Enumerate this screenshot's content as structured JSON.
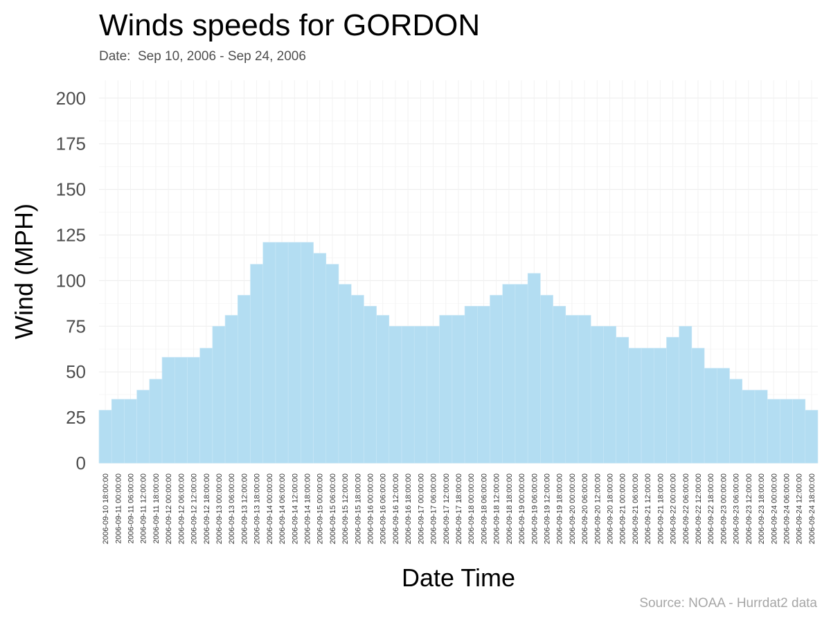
{
  "chart_data": {
    "type": "bar",
    "title": "Winds speeds for GORDON",
    "subtitle": "Date:  Sep 10, 2006 - Sep 24, 2006",
    "caption": "Source: NOAA - Hurrdat2 data",
    "xlabel": "Date Time",
    "ylabel": "Wind (MPH)",
    "ylim": [
      0,
      210
    ],
    "yticks": [
      0,
      25,
      50,
      75,
      100,
      125,
      150,
      175,
      200
    ],
    "grid": true,
    "bar_color": "#b3ddf2",
    "categories": [
      "2006-09-10 18:00:00",
      "2006-09-11 00:00:00",
      "2006-09-11 06:00:00",
      "2006-09-11 12:00:00",
      "2006-09-11 18:00:00",
      "2006-09-12 00:00:00",
      "2006-09-12 06:00:00",
      "2006-09-12 12:00:00",
      "2006-09-12 18:00:00",
      "2006-09-13 00:00:00",
      "2006-09-13 06:00:00",
      "2006-09-13 12:00:00",
      "2006-09-13 18:00:00",
      "2006-09-14 00:00:00",
      "2006-09-14 06:00:00",
      "2006-09-14 12:00:00",
      "2006-09-14 18:00:00",
      "2006-09-15 00:00:00",
      "2006-09-15 06:00:00",
      "2006-09-15 12:00:00",
      "2006-09-15 18:00:00",
      "2006-09-16 00:00:00",
      "2006-09-16 06:00:00",
      "2006-09-16 12:00:00",
      "2006-09-16 18:00:00",
      "2006-09-17 00:00:00",
      "2006-09-17 06:00:00",
      "2006-09-17 12:00:00",
      "2006-09-17 18:00:00",
      "2006-09-18 00:00:00",
      "2006-09-18 06:00:00",
      "2006-09-18 12:00:00",
      "2006-09-18 18:00:00",
      "2006-09-19 00:00:00",
      "2006-09-19 06:00:00",
      "2006-09-19 12:00:00",
      "2006-09-19 18:00:00",
      "2006-09-20 00:00:00",
      "2006-09-20 06:00:00",
      "2006-09-20 12:00:00",
      "2006-09-20 18:00:00",
      "2006-09-21 00:00:00",
      "2006-09-21 06:00:00",
      "2006-09-21 12:00:00",
      "2006-09-21 18:00:00",
      "2006-09-22 00:00:00",
      "2006-09-22 06:00:00",
      "2006-09-22 12:00:00",
      "2006-09-22 18:00:00",
      "2006-09-23 00:00:00",
      "2006-09-23 06:00:00",
      "2006-09-23 12:00:00",
      "2006-09-23 18:00:00",
      "2006-09-24 00:00:00",
      "2006-09-24 06:00:00",
      "2006-09-24 12:00:00",
      "2006-09-24 18:00:00"
    ],
    "values": [
      29,
      35,
      35,
      40,
      46,
      58,
      58,
      58,
      63,
      75,
      81,
      92,
      109,
      121,
      121,
      121,
      121,
      115,
      109,
      98,
      92,
      86,
      81,
      75,
      75,
      75,
      75,
      81,
      81,
      86,
      86,
      92,
      98,
      98,
      104,
      92,
      86,
      81,
      81,
      75,
      75,
      69,
      63,
      63,
      63,
      69,
      75,
      63,
      52,
      52,
      46,
      40,
      40,
      35,
      35,
      35,
      29
    ]
  }
}
